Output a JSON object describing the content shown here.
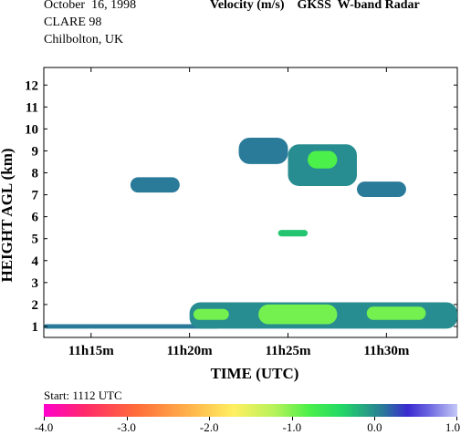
{
  "header": {
    "date": "October  16, 1998",
    "campaign": "CLARE 98",
    "location": "Chilbolton, UK",
    "title": "Velocity (m/s)    GKSS  W-band Radar"
  },
  "colorbar": {
    "start_label": "Start: 1112 UTC",
    "ticks": [
      "-4.0",
      "-3.0",
      "-2.0",
      "-1.0",
      "0.0",
      "1.0"
    ]
  },
  "chart_data": {
    "type": "heatmap",
    "title": "Velocity (m/s)",
    "xlabel": "TIME (UTC)",
    "ylabel": "HEIGHT AGL (km)",
    "x_ticks": [
      "11h15m",
      "11h20m",
      "11h25m",
      "11h30m"
    ],
    "y_ticks": [
      "1",
      "2",
      "3",
      "4",
      "5",
      "6",
      "7",
      "8",
      "9",
      "10",
      "11",
      "12"
    ],
    "xlim_minutes_after_11h": [
      12.6,
      33.6
    ],
    "ylim_km": [
      0.5,
      12.8
    ],
    "color_range_m_s": [
      -4.0,
      1.0
    ],
    "regions": [
      {
        "t_start": 12.6,
        "t_end": 21.5,
        "h_bottom": 0.9,
        "h_top": 1.1,
        "velocity": 0.1
      },
      {
        "t_start": 20.0,
        "t_end": 33.6,
        "h_bottom": 0.9,
        "h_top": 2.1,
        "velocity": 0.0
      },
      {
        "t_start": 23.5,
        "t_end": 27.5,
        "h_bottom": 1.1,
        "h_top": 2.0,
        "velocity": -1.0
      },
      {
        "t_start": 20.2,
        "t_end": 22.0,
        "h_bottom": 1.3,
        "h_top": 1.8,
        "velocity": -1.0
      },
      {
        "t_start": 29.0,
        "t_end": 32.0,
        "h_bottom": 1.3,
        "h_top": 1.9,
        "velocity": -1.0
      },
      {
        "t_start": 24.5,
        "t_end": 26.0,
        "h_bottom": 5.1,
        "h_top": 5.4,
        "velocity": -0.3
      },
      {
        "t_start": 17.0,
        "t_end": 19.5,
        "h_bottom": 7.1,
        "h_top": 7.8,
        "velocity": 0.1
      },
      {
        "t_start": 22.5,
        "t_end": 25.0,
        "h_bottom": 8.4,
        "h_top": 9.6,
        "velocity": 0.1
      },
      {
        "t_start": 25.0,
        "t_end": 28.5,
        "h_bottom": 7.4,
        "h_top": 9.3,
        "velocity": 0.0
      },
      {
        "t_start": 26.0,
        "t_end": 27.5,
        "h_bottom": 8.2,
        "h_top": 9.0,
        "velocity": -0.8
      },
      {
        "t_start": 28.5,
        "t_end": 31.0,
        "h_bottom": 6.9,
        "h_top": 7.6,
        "velocity": 0.1
      }
    ]
  }
}
